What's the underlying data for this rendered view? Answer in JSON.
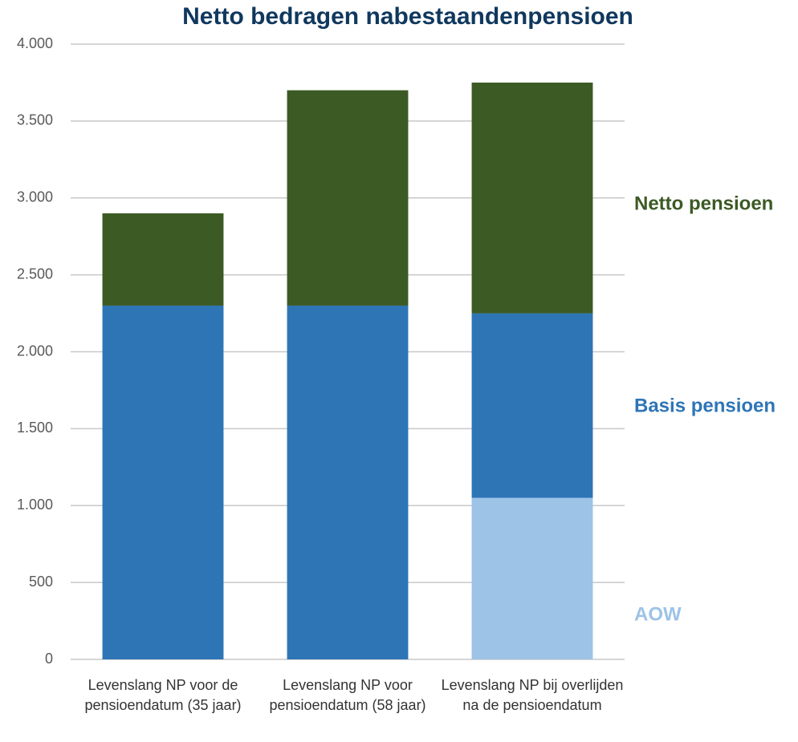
{
  "chart_data": {
    "type": "stacked_bar",
    "title": "Netto bedragen nabestaandenpensioen",
    "categories": [
      "Levenslang NP voor de pensioendatum (35 jaar)",
      "Levenslang NP voor pensioendatum (58 jaar)",
      "Levenslang NP bij overlijden na de pensioendatum"
    ],
    "series": [
      {
        "name": "AOW",
        "color": "#9dc3e6",
        "values": [
          0,
          0,
          1050
        ]
      },
      {
        "name": "Basis pensioen",
        "color": "#2e75b6",
        "values": [
          2300,
          2300,
          1200
        ]
      },
      {
        "name": "Netto pensioen",
        "color": "#3c5a24",
        "values": [
          600,
          1400,
          1500
        ]
      }
    ],
    "ylim": [
      0,
      4000
    ],
    "yticks": [
      0,
      500,
      {
        "value": 1000,
        "label": "1.000"
      },
      {
        "value": 1500,
        "label": "1.500"
      },
      {
        "value": 2000,
        "label": "2.000"
      },
      {
        "value": 2500,
        "label": "2.500"
      },
      {
        "value": 3000,
        "label": "3.000"
      },
      {
        "value": 3500,
        "label": "3.500"
      },
      {
        "value": 4000,
        "label": "4.000"
      }
    ],
    "grid": true,
    "legend": "right"
  }
}
